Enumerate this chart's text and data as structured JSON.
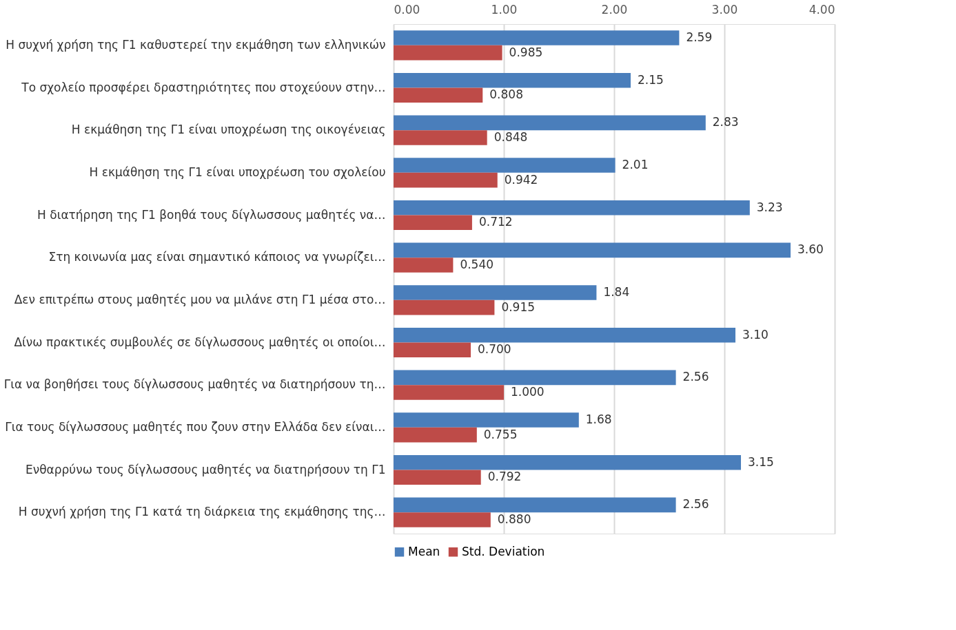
{
  "chart_data": {
    "type": "bar",
    "orientation": "horizontal",
    "categories": [
      "Η συχνή χρήση της Γ1 καθυστερεί την εκμάθηση των ελληνικών",
      "Το σχολείο προσφέρει δραστηριότητες που στοχεύουν στην…",
      "Η εκμάθηση της Γ1 είναι υποχρέωση της οικογένειας",
      "Η εκμάθηση της Γ1 είναι υποχρέωση του σχολείου",
      "Η διατήρηση της Γ1 βοηθά τους δίγλωσσους μαθητές να…",
      "Στη κοινωνία μας είναι σημαντικό κάποιος να γνωρίζει…",
      "Δεν επιτρέπω στους μαθητές μου να μιλάνε στη Γ1 μέσα στο…",
      "Δίνω πρακτικές συμβουλές σε δίγλωσσους μαθητές οι οποίοι…",
      "Για να βοηθήσει τους δίγλωσσους μαθητές να διατηρήσουν τη…",
      "Για τους δίγλωσσους μαθητές που ζουν στην Ελλάδα δεν είναι…",
      "Ενθαρρύνω τους δίγλωσσους μαθητές να διατηρήσουν τη Γ1",
      "Η συχνή χρήση της Γ1 κατά τη διάρκεια της εκμάθησης της…"
    ],
    "series": [
      {
        "name": "Mean",
        "color": "#4a7ebb",
        "values": [
          2.59,
          2.15,
          2.83,
          2.01,
          3.23,
          3.6,
          1.84,
          3.1,
          2.56,
          1.68,
          3.15,
          2.56
        ],
        "value_labels": [
          "2.59",
          "2.15",
          "2.83",
          "2.01",
          "3.23",
          "3.60",
          "1.84",
          "3.10",
          "2.56",
          "1.68",
          "3.15",
          "2.56"
        ]
      },
      {
        "name": "Std. Deviation",
        "color": "#be4b48",
        "values": [
          0.985,
          0.808,
          0.848,
          0.942,
          0.712,
          0.54,
          0.915,
          0.7,
          1.0,
          0.755,
          0.792,
          0.88
        ],
        "value_labels": [
          "0.985",
          "0.808",
          "0.848",
          "0.942",
          "0.712",
          "0.540",
          "0.915",
          "0.700",
          "1.000",
          "0.755",
          "0.792",
          "0.880"
        ]
      }
    ],
    "xlim": [
      0,
      4
    ],
    "xticks": [
      {
        "value": 0,
        "label": "0.00"
      },
      {
        "value": 1,
        "label": "1.00"
      },
      {
        "value": 2,
        "label": "2.00"
      },
      {
        "value": 3,
        "label": "3.00"
      },
      {
        "value": 4,
        "label": "4.00"
      }
    ],
    "grid": "x",
    "legend": "bottom"
  }
}
